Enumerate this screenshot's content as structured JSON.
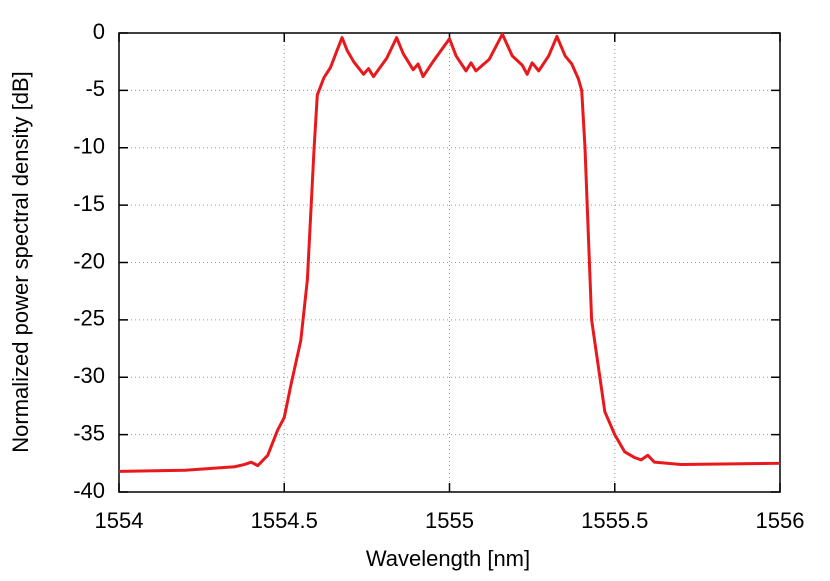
{
  "chart_data": {
    "type": "line",
    "xlabel": "Wavelength [nm]",
    "ylabel": "Normalized power spectral density [dB]",
    "xlim": [
      1554,
      1556
    ],
    "xticks": [
      1554,
      1554.5,
      1555,
      1555.5,
      1556
    ],
    "ylim": [
      -40,
      0
    ],
    "yticks": [
      0,
      -5,
      -10,
      -15,
      -20,
      -25,
      -30,
      -35,
      -40
    ],
    "grid": true,
    "series": [
      {
        "color": "#e8191c",
        "x": [
          1554,
          1554.2,
          1554.35,
          1554.38,
          1554.4,
          1554.42,
          1554.45,
          1554.48,
          1554.5,
          1554.52,
          1554.55,
          1554.57,
          1554.59,
          1554.6,
          1554.62,
          1554.64,
          1554.66,
          1554.675,
          1554.69,
          1554.71,
          1554.74,
          1554.755,
          1554.77,
          1554.79,
          1554.81,
          1554.84,
          1554.86,
          1554.89,
          1554.905,
          1554.92,
          1554.95,
          1555.0,
          1555.02,
          1555.05,
          1555.065,
          1555.08,
          1555.12,
          1555.16,
          1555.19,
          1555.22,
          1555.235,
          1555.25,
          1555.27,
          1555.3,
          1555.325,
          1555.35,
          1555.37,
          1555.39,
          1555.4,
          1555.41,
          1555.43,
          1555.47,
          1555.5,
          1555.53,
          1555.56,
          1555.58,
          1555.6,
          1555.62,
          1555.7,
          1556
        ],
        "values": [
          -38.2,
          -38.1,
          -37.8,
          -37.6,
          -37.4,
          -37.7,
          -36.8,
          -34.6,
          -33.5,
          -30.7,
          -26.8,
          -21.5,
          -10.2,
          -5.4,
          -3.9,
          -3.0,
          -1.5,
          -0.4,
          -1.5,
          -2.5,
          -3.6,
          -3.1,
          -3.8,
          -3.0,
          -2.2,
          -0.4,
          -1.8,
          -3.2,
          -2.7,
          -3.8,
          -2.5,
          -0.5,
          -2.0,
          -3.3,
          -2.6,
          -3.3,
          -2.3,
          -0.1,
          -2.0,
          -2.8,
          -3.6,
          -2.6,
          -3.3,
          -2.0,
          -0.3,
          -2.0,
          -2.7,
          -4.0,
          -5.0,
          -10,
          -25,
          -33,
          -35,
          -36.5,
          -37,
          -37.2,
          -36.8,
          -37.4,
          -37.6,
          -37.5
        ]
      }
    ]
  }
}
